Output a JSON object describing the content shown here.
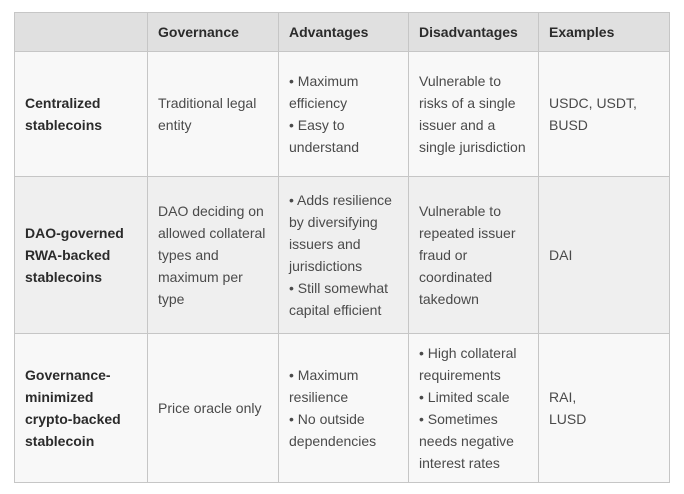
{
  "table": {
    "headers": {
      "row_label": "",
      "governance": "Governance",
      "advantages": "Advantages",
      "disadvantages": "Disadvantages",
      "examples": "Examples"
    },
    "rows": [
      {
        "name": "Centralized stablecoins",
        "governance": "Traditional legal entity",
        "advantages": "• Maximum efficiency\n• Easy to understand",
        "disadvantages": "Vulnerable to risks of a single issuer and a single jurisdiction",
        "examples": "USDC, USDT,\nBUSD"
      },
      {
        "name": "DAO-governed RWA-backed stablecoins",
        "governance": "DAO deciding on allowed collateral types and maximum per type",
        "advantages": "• Adds resilience by diversifying issuers and jurisdictions\n• Still somewhat capital efficient",
        "disadvantages": "Vulnerable to repeated issuer fraud or coordinated takedown",
        "examples": "DAI"
      },
      {
        "name": "Governance-minimized crypto-backed stablecoin",
        "governance": "Price oracle only",
        "advantages": "• Maximum resilience\n• No outside dependencies",
        "disadvantages": "• High collateral requirements\n• Limited scale\n• Sometimes needs negative interest rates",
        "examples": "RAI,\nLUSD"
      }
    ],
    "colors": {
      "header_bg": "#e0e0e0",
      "row_odd_bg": "#f8f8f8",
      "row_even_bg": "#efefef",
      "border": "#c6c6c6"
    }
  }
}
